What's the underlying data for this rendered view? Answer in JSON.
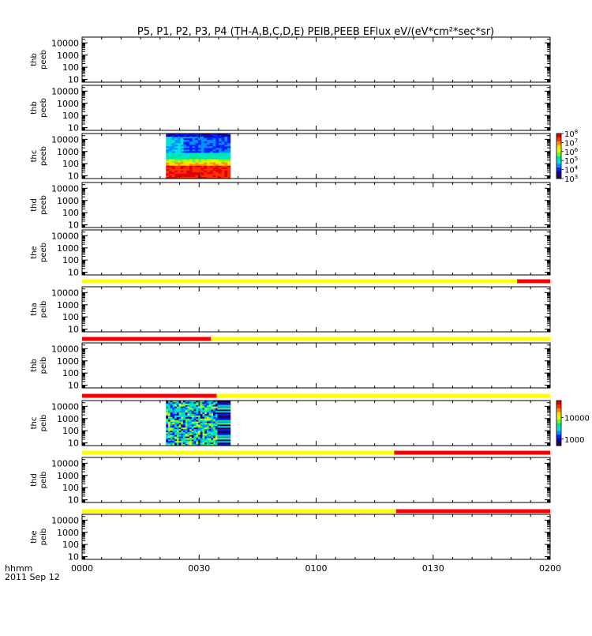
{
  "chart_data": {
    "type": "heatmap",
    "title": "P5, P1, P2, P3, P4 (TH-A,B,C,D,E) PEIB,PEEB EFlux eV/(eV*cm²*sec*sr)",
    "x_axis": {
      "ticks": [
        "0000",
        "0030",
        "0100",
        "0130",
        "0200"
      ],
      "tick_minutes": [
        0,
        30,
        60,
        90,
        120
      ],
      "range_minutes": [
        0,
        120
      ],
      "label_line1": "hhmm",
      "label_line2": "2011 Sep 12"
    },
    "y_ticks": [
      "10000",
      "1000",
      "100",
      "10"
    ],
    "y_tick_values": [
      10000,
      1000,
      100,
      10
    ],
    "y_scale": "log",
    "y_range": [
      6,
      30000
    ],
    "panels": [
      {
        "label_top": "thb",
        "label_bottom": "peeb",
        "data": "none"
      },
      {
        "label_top": "thb",
        "label_bottom": "peeb",
        "data": "none"
      },
      {
        "label_top": "thc",
        "label_bottom": "peeb",
        "data": "spectrogram",
        "data_start_min": 21.5,
        "data_end_min": 38,
        "pattern": "electron"
      },
      {
        "label_top": "thd",
        "label_bottom": "peeb",
        "data": "none"
      },
      {
        "label_top": "the",
        "label_bottom": "peeb",
        "data": "none"
      },
      {
        "label_top": "tha",
        "label_bottom": "peib",
        "data": "none"
      },
      {
        "label_top": "thb",
        "label_bottom": "peib",
        "data": "none"
      },
      {
        "label_top": "thc",
        "label_bottom": "peib",
        "data": "spectrogram",
        "data_start_min": 21.5,
        "data_end_min": 38,
        "pattern": "ion"
      },
      {
        "label_top": "thd",
        "label_bottom": "peib",
        "data": "none"
      },
      {
        "label_top": "the",
        "label_bottom": "peib",
        "data": "none"
      }
    ],
    "mode_bars": [
      {
        "after_panel": 4,
        "segments": [
          {
            "from": 0,
            "to": 111.5,
            "color": "#ffff00"
          },
          {
            "from": 111.5,
            "to": 120,
            "color": "#ff0000"
          }
        ]
      },
      {
        "after_panel": 5,
        "segments": [
          {
            "from": 0,
            "to": 33,
            "color": "#ff0000"
          },
          {
            "from": 33,
            "to": 120,
            "color": "#ffff00"
          }
        ]
      },
      {
        "after_panel": 6,
        "segments": [
          {
            "from": 0,
            "to": 34.5,
            "color": "#ff0000"
          },
          {
            "from": 34.5,
            "to": 120,
            "color": "#ffff00"
          }
        ]
      },
      {
        "after_panel": 7,
        "segments": [
          {
            "from": 0,
            "to": 80,
            "color": "#ffff00"
          },
          {
            "from": 80,
            "to": 120,
            "color": "#ff0000"
          }
        ]
      },
      {
        "after_panel": 8,
        "segments": [
          {
            "from": 0,
            "to": 80.5,
            "color": "#ffff00"
          },
          {
            "from": 80.5,
            "to": 120,
            "color": "#ff0000"
          }
        ]
      }
    ],
    "colorbars": [
      {
        "panel": 2,
        "scale": "log",
        "range": [
          1000,
          100000000
        ],
        "labels": [
          {
            "base": "10",
            "exp": "8",
            "value": 100000000
          },
          {
            "base": "10",
            "exp": "7",
            "value": 10000000
          },
          {
            "base": "10",
            "exp": "6",
            "value": 1000000
          },
          {
            "base": "10",
            "exp": "5",
            "value": 100000
          },
          {
            "base": "10",
            "exp": "4",
            "value": 10000
          },
          {
            "base": "10",
            "exp": "3",
            "value": 1000
          }
        ]
      },
      {
        "panel": 7,
        "scale": "log",
        "range": [
          500,
          60000
        ],
        "labels": [
          {
            "text": "10000",
            "value": 10000
          },
          {
            "text": "1000",
            "value": 1000
          }
        ]
      }
    ],
    "colormap": [
      "#2a004a",
      "#1a0090",
      "#0020ff",
      "#0090ff",
      "#00e0e0",
      "#00e890",
      "#60ff30",
      "#d8ff00",
      "#ffe000",
      "#ff9000",
      "#ff3000",
      "#e00000"
    ],
    "grid": false,
    "legend": "none"
  }
}
